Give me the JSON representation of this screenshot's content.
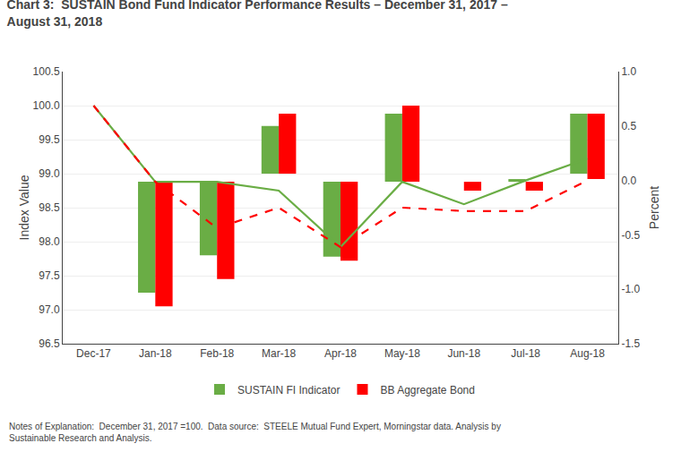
{
  "chart_data": {
    "type": "bar",
    "title": "Chart 3:  SUSTAIN Bond Fund Indicator Performance Results – December 31, 2017 –\nAugust 31, 2018",
    "ylabel": "Index Value",
    "y2label": "Percent",
    "annotations": [
      "Notes of Explanation:  December 31, 2017 =100.  Data source:  STEELE Mutual Fund Expert, Morningstar data. Analysis by\nSustainable Research and Analysis."
    ],
    "categories": [
      "Dec-17",
      "Jan-18",
      "Feb-18",
      "Mar-18",
      "Apr-18",
      "May-18",
      "Jun-18",
      "Jul-18",
      "Aug-18"
    ],
    "series": [
      {
        "name": "SUSTAIN FI Indicator",
        "type": "bar",
        "color": "#6AAD45",
        "values": [
          null,
          98.88,
          98.88,
          99.7,
          98.88,
          99.88,
          98.88,
          98.92,
          99.88
        ],
        "base": [
          null,
          97.25,
          97.8,
          99.0,
          97.78,
          98.88,
          98.88,
          98.88,
          99.0
        ]
      },
      {
        "name": "BB Aggregate Bond",
        "type": "bar",
        "color": "#FF0000",
        "values": [
          null,
          98.88,
          98.88,
          99.88,
          98.88,
          100.0,
          98.88,
          98.88,
          99.88
        ],
        "base": [
          null,
          97.05,
          97.45,
          99.0,
          97.72,
          98.88,
          98.75,
          98.75,
          98.92
        ]
      },
      {
        "type": "line",
        "color": "#6AAD45",
        "line_style": "solid",
        "values": [
          100.0,
          98.88,
          98.88,
          98.75,
          97.92,
          98.88,
          98.55,
          98.9,
          99.22
        ]
      },
      {
        "type": "line",
        "color": "#FF0000",
        "line_style": "dashed",
        "values": [
          100.0,
          98.88,
          98.2,
          98.5,
          97.92,
          98.5,
          98.45,
          98.45,
          98.9
        ]
      }
    ],
    "ylim": [
      96.5,
      100.5
    ],
    "yticks": [
      96.5,
      {
        "value": 97,
        "label": "97.0"
      },
      97.5,
      {
        "value": 98,
        "label": "98.0"
      },
      98.5,
      {
        "value": 99,
        "label": "99.0"
      },
      99.5,
      {
        "value": 100,
        "label": "100.0"
      },
      100.5
    ],
    "y2lim": [
      -1.5,
      1.0
    ],
    "y2ticks": [
      -1.5,
      {
        "value": -1,
        "label": "-1.0"
      },
      -0.5,
      {
        "value": 0,
        "label": "0.0"
      },
      0.5,
      {
        "value": 1,
        "label": "1.0"
      }
    ],
    "grid": true,
    "legend": "bottom"
  }
}
